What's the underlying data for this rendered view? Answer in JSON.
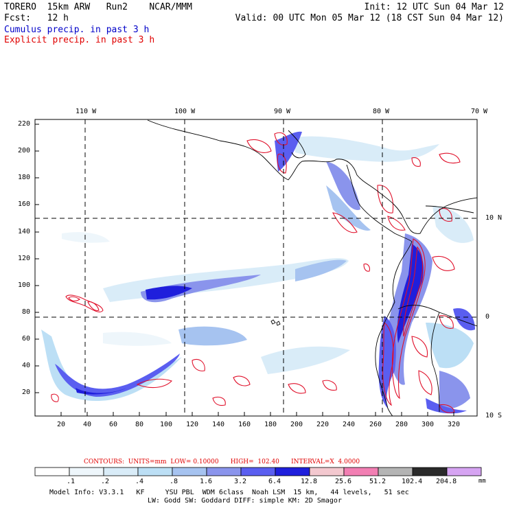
{
  "header": {
    "left_line1": "TORERO  15km ARW   Run2    NCAR/MMM",
    "left_line2": "Fcst:   12 h",
    "right_line1": "Init: 12 UTC Sun 04 Mar 12",
    "right_line2": "Valid: 00 UTC Mon 05 Mar 12 (18 CST Sun 04 Mar 12)",
    "legend_cumulus": "Cumulus precip. in past 3 h",
    "legend_explicit": "Explicit precip. in past 3 h"
  },
  "colors": {
    "cumulus_text": "#0000c8",
    "explicit_text": "#e00000",
    "contour": "#e0102a"
  },
  "map": {
    "top_lon_labels": [
      "110 W",
      "100 W",
      "90 W",
      "80 W",
      "70 W"
    ],
    "right_lat_labels": [
      "10 N",
      "0",
      "10 S"
    ],
    "y_ticks": [
      "220",
      "200",
      "180",
      "160",
      "140",
      "120",
      "100",
      "80",
      "60",
      "40",
      "20"
    ],
    "x_ticks": [
      "20",
      "40",
      "60",
      "80",
      "100",
      "120",
      "140",
      "160",
      "180",
      "200",
      "220",
      "240",
      "260",
      "280",
      "300",
      "320"
    ]
  },
  "contour_info": {
    "label": "CONTOURS:  UNITS=mm  LOW= 0.10000      HIGH=  102.40      INTERVAL=X  4.0000"
  },
  "colorbar": {
    "labels": [
      ".1",
      ".2",
      ".4",
      ".8",
      "1.6",
      "3.2",
      "6.4",
      "12.8",
      "25.6",
      "51.2",
      "102.4",
      "204.8"
    ],
    "units": "mm",
    "colors": [
      "#ffffff",
      "#eef6fb",
      "#d9ecf8",
      "#bcdff5",
      "#a6c3f0",
      "#8a94ec",
      "#5a5ef0",
      "#1f1fdc",
      "#f3c8cf",
      "#f27fb3",
      "#b4b4b4",
      "#2a2a2a",
      "#d6a4f2"
    ]
  },
  "footer": {
    "line1": "Model Info: V3.3.1   KF     YSU PBL  WDM 6class  Noah LSM  15 km,   44 levels,   51 sec",
    "line2": "LW: Godd SW: Goddard DIFF: simple KM: 2D Smagor"
  }
}
